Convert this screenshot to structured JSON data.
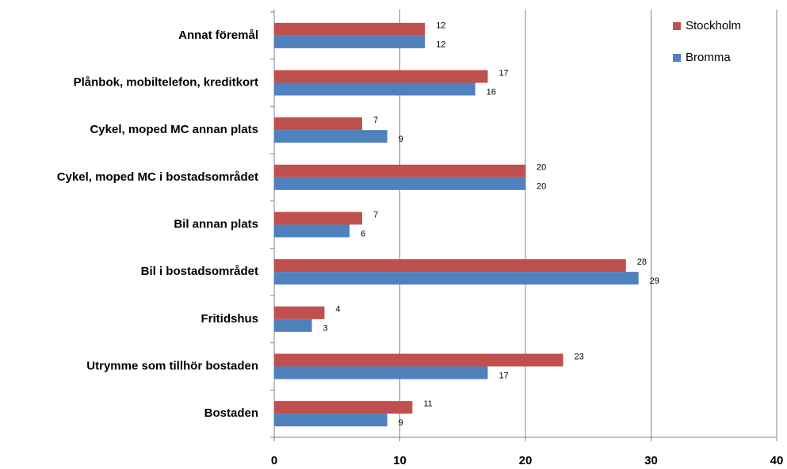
{
  "chart_data": {
    "type": "bar",
    "orientation": "horizontal",
    "categories": [
      "Annat föremål",
      "Plånbok, mobiltelefon, kreditkort",
      "Cykel, moped MC  annan plats",
      "Cykel, moped MC i bostadsområdet",
      "Bil annan plats",
      "Bil i bostadsområdet",
      "Fritidshus",
      "Utrymme som tillhör bostaden",
      "Bostaden"
    ],
    "series": [
      {
        "name": "Stockholm",
        "color": "#c0504d",
        "values": [
          12,
          17,
          7,
          20,
          7,
          28,
          4,
          23,
          11
        ]
      },
      {
        "name": "Bromma",
        "color": "#4f81bd",
        "values": [
          12,
          16,
          9,
          20,
          6,
          29,
          3,
          17,
          9
        ]
      }
    ],
    "xlim": [
      0,
      40
    ],
    "xticks": [
      0,
      10,
      20,
      30,
      40
    ],
    "grid": true,
    "legend": "top-right"
  }
}
